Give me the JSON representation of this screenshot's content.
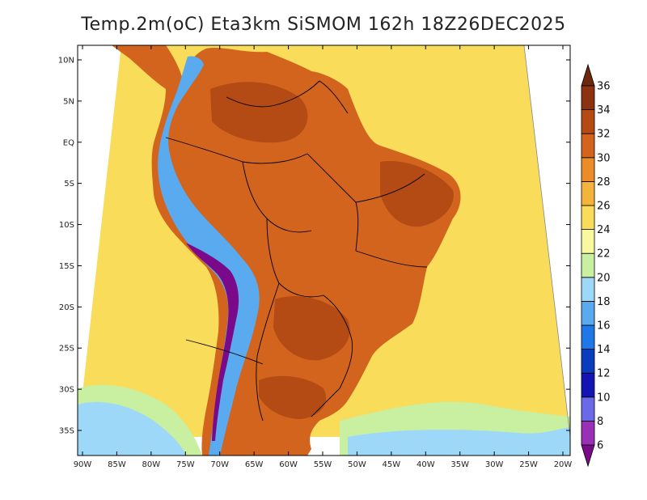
{
  "title": "Temp.2m(oC) Eta3km SiSMOM 162h 18Z26DEC2025",
  "y_axis": {
    "ticks": [
      "10N",
      "5N",
      "EQ",
      "5S",
      "10S",
      "15S",
      "20S",
      "25S",
      "30S",
      "35S"
    ],
    "lat_values": [
      10,
      5,
      0,
      -5,
      -10,
      -15,
      -20,
      -25,
      -30,
      -35
    ]
  },
  "x_axis": {
    "ticks": [
      "90W",
      "85W",
      "80W",
      "75W",
      "70W",
      "65W",
      "60W",
      "55W",
      "50W",
      "45W",
      "40W",
      "35W",
      "30W",
      "25W",
      "20W"
    ],
    "lon_values": [
      -90,
      -85,
      -80,
      -75,
      -70,
      -65,
      -60,
      -55,
      -50,
      -45,
      -40,
      -35,
      -30,
      -25,
      -20
    ]
  },
  "colorbar": {
    "labels": [
      "6",
      "8",
      "10",
      "12",
      "14",
      "16",
      "18",
      "20",
      "22",
      "24",
      "26",
      "28",
      "30",
      "32",
      "34",
      "36"
    ],
    "colors": [
      "#7a0a8a",
      "#9a30b8",
      "#6a6ae8",
      "#1414b4",
      "#0c3cbe",
      "#1e78e6",
      "#5aaaf0",
      "#9ed8f8",
      "#c8f0a0",
      "#f8f8a0",
      "#f8dc5a",
      "#f4b43c",
      "#ec8c28",
      "#d2641e",
      "#b44a14",
      "#8c3210",
      "#6e260c"
    ]
  },
  "colors": {
    "ocean": "#f8dc5a",
    "coast_ocean": "#f4c040",
    "south_ocean_cool": "#c8f0a0",
    "south_ocean_cold": "#9ed8f8",
    "land_hot": "#d2641e",
    "land_very_hot": "#b44a14",
    "andes": "#5aaaf0",
    "andes_core": "#7a0a8a",
    "border": "#000000"
  }
}
